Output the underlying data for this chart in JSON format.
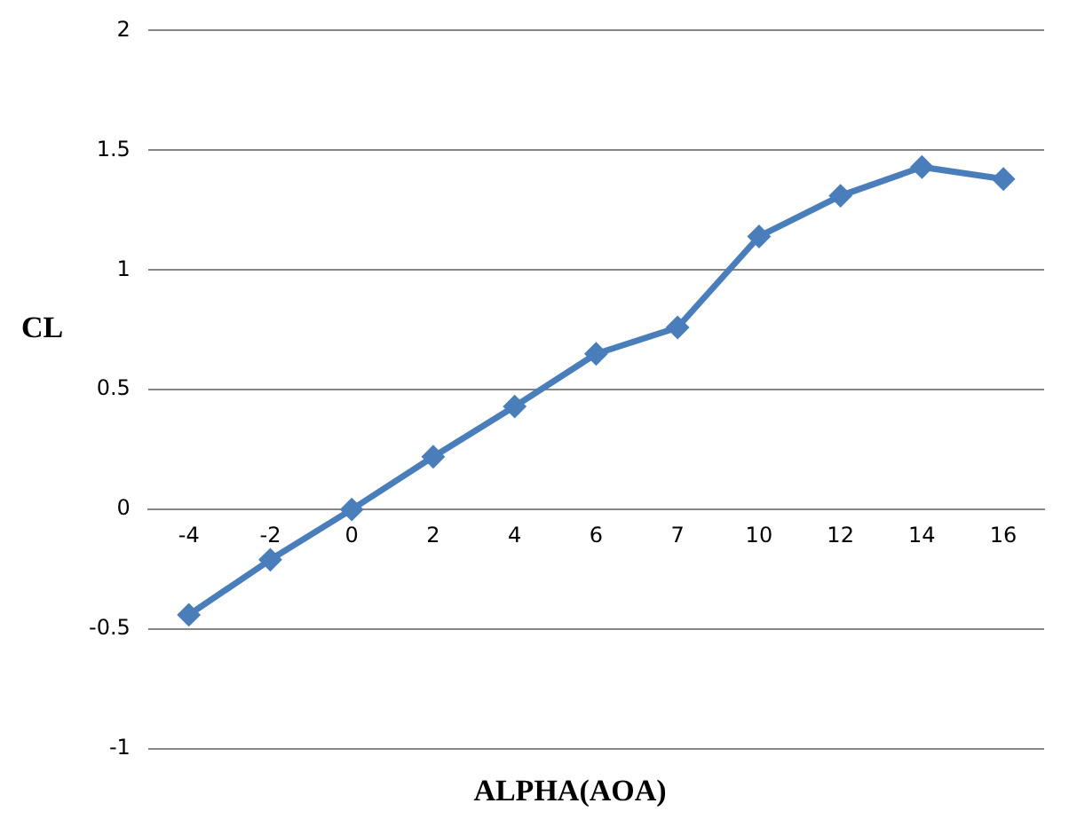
{
  "chart_data": {
    "type": "line",
    "xlabel": "ALPHA(AOA)",
    "ylabel": "CL",
    "categories": [
      "-4",
      "-2",
      "0",
      "2",
      "4",
      "6",
      "7",
      "10",
      "12",
      "14",
      "16"
    ],
    "series": [
      {
        "color": "#4a7ebb",
        "values": [
          -0.44,
          -0.21,
          0,
          0.22,
          0.43,
          0.65,
          0.76,
          1.14,
          1.31,
          1.43,
          1.38
        ]
      }
    ],
    "ylim": [
      -1,
      2
    ],
    "yticks": [
      -1,
      -0.5,
      0,
      0.5,
      1,
      1.5,
      2
    ],
    "grid": "y",
    "legend": false,
    "marker": "diamond",
    "line_style": "solid"
  }
}
